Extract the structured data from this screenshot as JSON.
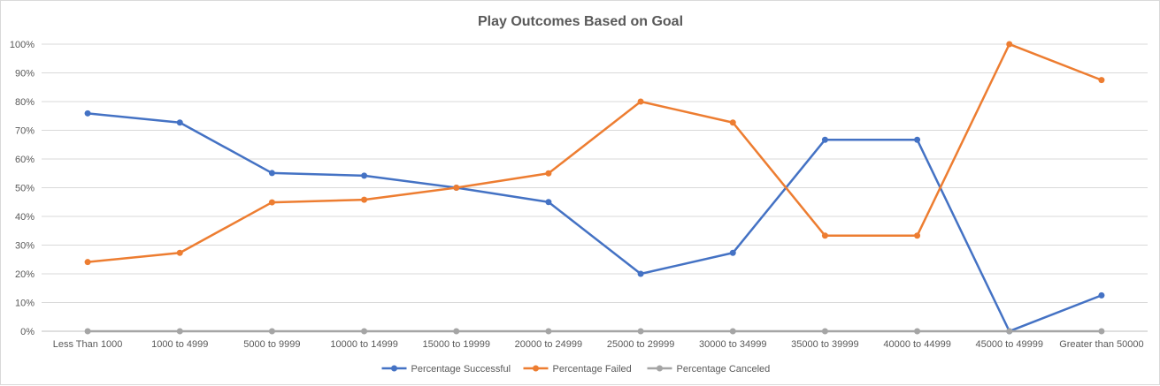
{
  "chart_data": {
    "type": "line",
    "title": "Play Outcomes Based on Goal",
    "xlabel": "",
    "ylabel": "",
    "ylim": [
      0,
      1
    ],
    "y_ticks": [
      "0%",
      "10%",
      "20%",
      "30%",
      "40%",
      "50%",
      "60%",
      "70%",
      "80%",
      "90%",
      "100%"
    ],
    "categories": [
      "Less Than 1000",
      "1000 to 4999",
      "5000 to 9999",
      "10000 to 14999",
      "15000 to 19999",
      "20000 to 24999",
      "25000 to 29999",
      "30000 to 34999",
      "35000 to 39999",
      "40000 to 44999",
      "45000 to 49999",
      "Greater than 50000"
    ],
    "grid": true,
    "legend_position": "bottom",
    "series": [
      {
        "name": "Percentage Successful",
        "color": "#4472c4",
        "values": [
          0.759,
          0.727,
          0.551,
          0.542,
          0.5,
          0.45,
          0.2,
          0.273,
          0.667,
          0.667,
          0.0,
          0.125
        ]
      },
      {
        "name": "Percentage Failed",
        "color": "#ed7d31",
        "values": [
          0.241,
          0.273,
          0.449,
          0.458,
          0.5,
          0.55,
          0.8,
          0.727,
          0.333,
          0.333,
          1.0,
          0.875
        ]
      },
      {
        "name": "Percentage Canceled",
        "color": "#a5a5a5",
        "values": [
          0,
          0,
          0,
          0,
          0,
          0,
          0,
          0,
          0,
          0,
          0,
          0
        ]
      }
    ]
  }
}
